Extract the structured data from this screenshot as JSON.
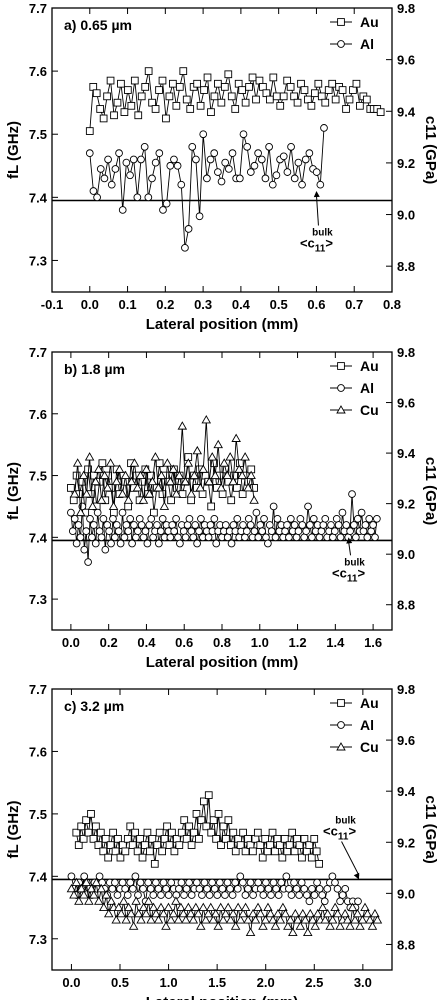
{
  "chart_data": [
    {
      "type": "line",
      "panel_label": "a) 0.65 µm",
      "xlabel": "Lateral position  (mm)",
      "ylabel_left": "f_L  (GHz)",
      "ylabel_right": "c_11  (GPa)",
      "xlim": [
        -0.1,
        0.8
      ],
      "ylim_left": [
        7.25,
        7.7
      ],
      "ylim_right": [
        8.7,
        9.8
      ],
      "xticks": [
        "-0.1",
        "0.0",
        "0.1",
        "0.2",
        "0.3",
        "0.4",
        "0.5",
        "0.6",
        "0.7",
        "0.8"
      ],
      "xtick_values": [
        -0.1,
        0.0,
        0.1,
        0.2,
        0.3,
        0.4,
        0.5,
        0.6,
        0.7,
        0.8
      ],
      "yticks_left": [
        "7.3",
        "7.4",
        "7.5",
        "7.6",
        "7.7"
      ],
      "ytick_left_values": [
        7.3,
        7.4,
        7.5,
        7.6,
        7.7
      ],
      "yticks_right": [
        "8.8",
        "9.0",
        "9.2",
        "9.4",
        "9.6",
        "9.8"
      ],
      "ytick_right_values": [
        8.8,
        9.0,
        9.2,
        9.4,
        9.6,
        9.8
      ],
      "hline": 7.395,
      "annotation": {
        "text": "<c11 bulk>",
        "tip": [
          0.6,
          7.41
        ],
        "label_at": [
          0.6,
          7.33
        ]
      },
      "legend": "top-right",
      "series": [
        {
          "name": "Au",
          "marker": "square",
          "x_start": 0.0,
          "x_end": 0.77,
          "values": [
            7.505,
            7.575,
            7.565,
            7.54,
            7.525,
            7.56,
            7.585,
            7.53,
            7.55,
            7.58,
            7.535,
            7.57,
            7.545,
            7.585,
            7.53,
            7.56,
            7.575,
            7.6,
            7.55,
            7.54,
            7.57,
            7.585,
            7.525,
            7.56,
            7.58,
            7.545,
            7.575,
            7.6,
            7.555,
            7.54,
            7.575,
            7.58,
            7.545,
            7.57,
            7.59,
            7.535,
            7.56,
            7.58,
            7.55,
            7.575,
            7.595,
            7.56,
            7.54,
            7.58,
            7.57,
            7.55,
            7.575,
            7.59,
            7.555,
            7.585,
            7.575,
            7.565,
            7.555,
            7.59,
            7.56,
            7.545,
            7.56,
            7.585,
            7.575,
            7.56,
            7.55,
            7.58,
            7.57,
            7.555,
            7.545,
            7.565,
            7.58,
            7.56,
            7.55,
            7.57,
            7.58,
            7.555,
            7.575,
            7.57,
            7.54,
            7.555,
            7.57,
            7.58,
            7.545,
            7.56,
            7.555,
            7.54,
            7.54,
            7.54,
            7.535
          ]
        },
        {
          "name": "Al",
          "marker": "circle",
          "x_start": 0.0,
          "x_end": 0.62,
          "values": [
            7.47,
            7.41,
            7.4,
            7.445,
            7.43,
            7.46,
            7.42,
            7.445,
            7.47,
            7.38,
            7.455,
            7.435,
            7.46,
            7.4,
            7.46,
            7.48,
            7.4,
            7.43,
            7.455,
            7.47,
            7.38,
            7.39,
            7.45,
            7.46,
            7.45,
            7.42,
            7.32,
            7.35,
            7.48,
            7.46,
            7.37,
            7.5,
            7.43,
            7.46,
            7.47,
            7.44,
            7.425,
            7.455,
            7.445,
            7.47,
            7.43,
            7.43,
            7.5,
            7.48,
            7.44,
            7.45,
            7.47,
            7.46,
            7.43,
            7.48,
            7.42,
            7.435,
            7.46,
            7.465,
            7.44,
            7.48,
            7.43,
            7.455,
            7.42,
            7.46,
            7.47,
            7.445,
            7.44,
            7.42,
            7.51
          ]
        }
      ]
    },
    {
      "type": "line",
      "panel_label": "b) 1.8 µm",
      "xlabel": "Lateral position  (mm)",
      "ylabel_left": "f_L  (GHz)",
      "ylabel_right": "c_11  (GPa)",
      "xlim": [
        -0.1,
        1.7
      ],
      "ylim_left": [
        7.25,
        7.7
      ],
      "ylim_right": [
        8.7,
        9.8
      ],
      "xticks": [
        "0.0",
        "0.2",
        "0.4",
        "0.6",
        "0.8",
        "1.0",
        "1.2",
        "1.4",
        "1.6"
      ],
      "xtick_values": [
        0.0,
        0.2,
        0.4,
        0.6,
        0.8,
        1.0,
        1.2,
        1.4,
        1.6
      ],
      "yticks_left": [
        "7.3",
        "7.4",
        "7.5",
        "7.6",
        "7.7"
      ],
      "ytick_left_values": [
        7.3,
        7.4,
        7.5,
        7.6,
        7.7
      ],
      "yticks_right": [
        "8.8",
        "9.0",
        "9.2",
        "9.4",
        "9.6",
        "9.8"
      ],
      "ytick_right_values": [
        8.8,
        9.0,
        9.2,
        9.4,
        9.6,
        9.8
      ],
      "hline": 7.395,
      "annotation": {
        "text": "<c11 bulk>",
        "tip": [
          1.47,
          7.4
        ],
        "label_at": [
          1.47,
          7.345
        ]
      },
      "legend": "top-right",
      "series": [
        {
          "name": "Au",
          "marker": "square",
          "x_start": 0.0,
          "x_end": 0.97,
          "values": [
            7.48,
            7.46,
            7.5,
            7.47,
            7.49,
            7.44,
            7.51,
            7.47,
            7.5,
            7.45,
            7.49,
            7.52,
            7.46,
            7.5,
            7.48,
            7.44,
            7.51,
            7.47,
            7.5,
            7.49,
            7.45,
            7.52,
            7.48,
            7.5,
            7.46,
            7.49,
            7.51,
            7.47,
            7.5,
            7.44,
            7.48,
            7.52,
            7.47,
            7.5,
            7.49,
            7.46,
            7.51,
            7.48,
            7.5,
            7.47,
            7.49,
            7.53,
            7.46,
            7.5,
            7.48,
            7.51,
            7.47,
            7.5,
            7.49,
            7.45,
            7.52,
            7.48,
            7.5,
            7.47,
            7.51,
            7.49,
            7.46,
            7.5,
            7.48,
            7.52,
            7.47,
            7.5,
            7.49,
            7.51,
            7.48
          ]
        },
        {
          "name": "Al",
          "marker": "circle",
          "x_start": 0.0,
          "x_end": 1.62,
          "values": [
            7.44,
            7.41,
            7.43,
            7.39,
            7.42,
            7.4,
            7.45,
            7.38,
            7.41,
            7.36,
            7.43,
            7.4,
            7.42,
            7.39,
            7.44,
            7.41,
            7.4,
            7.43,
            7.38,
            7.42,
            7.41,
            7.39,
            7.43,
            7.4,
            7.42,
            7.41,
            7.39,
            7.44,
            7.4,
            7.42,
            7.41,
            7.43,
            7.39,
            7.42,
            7.4,
            7.41,
            7.43,
            7.42,
            7.4,
            7.41,
            7.39,
            7.42,
            7.43,
            7.4,
            7.41,
            7.42,
            7.39,
            7.41,
            7.43,
            7.4,
            7.42,
            7.41,
            7.4,
            7.42,
            7.41,
            7.43,
            7.4,
            7.39,
            7.42,
            7.41,
            7.4,
            7.42,
            7.43,
            7.41,
            7.4,
            7.42,
            7.39,
            7.41,
            7.43,
            7.4,
            7.42,
            7.41,
            7.4,
            7.42,
            7.41,
            7.43,
            7.39,
            7.41,
            7.42,
            7.4,
            7.41,
            7.42,
            7.4,
            7.41,
            7.39,
            7.42,
            7.41,
            7.43,
            7.4,
            7.41,
            7.42,
            7.4,
            7.41,
            7.43,
            7.42,
            7.4,
            7.41,
            7.44,
            7.4,
            7.42,
            7.41,
            7.43,
            7.4,
            7.39,
            7.42,
            7.41,
            7.45,
            7.4,
            7.43,
            7.41,
            7.42,
            7.4,
            7.41,
            7.42,
            7.4,
            7.43,
            7.41,
            7.42,
            7.4,
            7.41,
            7.43,
            7.42,
            7.4,
            7.41,
            7.45,
            7.42,
            7.4,
            7.43,
            7.41,
            7.42,
            7.4,
            7.41,
            7.42,
            7.43,
            7.4,
            7.41,
            7.42,
            7.4,
            7.41,
            7.43,
            7.42,
            7.4,
            7.44,
            7.41,
            7.42,
            7.4,
            7.41,
            7.47,
            7.42,
            7.4,
            7.43,
            7.41,
            7.44,
            7.41,
            7.42,
            7.4,
            7.43,
            7.41,
            7.42,
            7.4,
            7.43
          ]
        },
        {
          "name": "Cu",
          "marker": "triangle",
          "x_start": 0.02,
          "x_end": 0.97,
          "values": [
            7.47,
            7.52,
            7.44,
            7.5,
            7.47,
            7.53,
            7.45,
            7.49,
            7.51,
            7.46,
            7.5,
            7.48,
            7.52,
            7.45,
            7.49,
            7.51,
            7.47,
            7.5,
            7.46,
            7.49,
            7.52,
            7.48,
            7.5,
            7.46,
            7.51,
            7.47,
            7.49,
            7.53,
            7.48,
            7.5,
            7.45,
            7.52,
            7.49,
            7.51,
            7.47,
            7.5,
            7.58,
            7.49,
            7.52,
            7.47,
            7.5,
            7.54,
            7.48,
            7.51,
            7.59,
            7.49,
            7.53,
            7.5,
            7.55,
            7.48,
            7.52,
            7.5,
            7.53,
            7.49,
            7.56,
            7.51,
            7.5,
            7.53,
            7.48,
            7.5,
            7.46
          ]
        }
      ]
    },
    {
      "type": "line",
      "panel_label": "c) 3.2 µm",
      "xlabel": "Lateral position  (mm)",
      "ylabel_left": "f_L  (GHz)",
      "ylabel_right": "c_11  (GPa)",
      "xlim": [
        -0.2,
        3.3
      ],
      "ylim_left": [
        7.25,
        7.7
      ],
      "ylim_right": [
        8.7,
        9.8
      ],
      "xticks": [
        "0.0",
        "0.5",
        "1.0",
        "1.5",
        "2.0",
        "2.5",
        "3.0"
      ],
      "xtick_values": [
        0.0,
        0.5,
        1.0,
        1.5,
        2.0,
        2.5,
        3.0
      ],
      "yticks_left": [
        "7.3",
        "7.4",
        "7.5",
        "7.6",
        "7.7"
      ],
      "ytick_left_values": [
        7.3,
        7.4,
        7.5,
        7.6,
        7.7
      ],
      "yticks_right": [
        "8.8",
        "9.0",
        "9.2",
        "9.4",
        "9.6",
        "9.8"
      ],
      "ytick_right_values": [
        8.8,
        9.0,
        9.2,
        9.4,
        9.6,
        9.8
      ],
      "hline": 7.395,
      "annotation": {
        "text": "<c11 bulk>",
        "tip": [
          2.96,
          7.395
        ],
        "label_at": [
          2.76,
          7.475
        ]
      },
      "legend": "top-right",
      "series": [
        {
          "name": "Au",
          "marker": "square",
          "x_start": 0.05,
          "x_end": 2.55,
          "values": [
            7.47,
            7.45,
            7.48,
            7.46,
            7.49,
            7.47,
            7.5,
            7.46,
            7.48,
            7.45,
            7.47,
            7.44,
            7.46,
            7.43,
            7.45,
            7.47,
            7.44,
            7.46,
            7.43,
            7.45,
            7.44,
            7.46,
            7.48,
            7.45,
            7.47,
            7.44,
            7.46,
            7.43,
            7.45,
            7.47,
            7.44,
            7.46,
            7.42,
            7.45,
            7.47,
            7.44,
            7.46,
            7.48,
            7.45,
            7.47,
            7.44,
            7.46,
            7.45,
            7.47,
            7.49,
            7.46,
            7.48,
            7.45,
            7.47,
            7.5,
            7.46,
            7.49,
            7.52,
            7.48,
            7.53,
            7.47,
            7.49,
            7.46,
            7.5,
            7.45,
            7.48,
            7.46,
            7.49,
            7.45,
            7.47,
            7.44,
            7.46,
            7.45,
            7.47,
            7.44,
            7.46,
            7.45,
            7.44,
            7.46,
            7.47,
            7.45,
            7.43,
            7.46,
            7.44,
            7.45,
            7.47,
            7.44,
            7.46,
            7.45,
            7.43,
            7.46,
            7.44,
            7.45,
            7.47,
            7.44,
            7.46,
            7.45,
            7.43,
            7.46,
            7.44,
            7.45,
            7.43,
            7.46,
            7.44,
            7.42
          ]
        },
        {
          "name": "Al",
          "marker": "circle",
          "x_start": 0.0,
          "x_end": 2.95,
          "values": [
            7.4,
            7.38,
            7.37,
            7.39,
            7.38,
            7.4,
            7.39,
            7.38,
            7.37,
            7.39,
            7.38,
            7.4,
            7.39,
            7.38,
            7.37,
            7.39,
            7.38,
            7.39,
            7.37,
            7.38,
            7.39,
            7.38,
            7.37,
            7.39,
            7.38,
            7.4,
            7.37,
            7.39,
            7.38,
            7.36,
            7.39,
            7.38,
            7.37,
            7.39,
            7.38,
            7.37,
            7.39,
            7.38,
            7.37,
            7.39,
            7.38,
            7.37,
            7.38,
            7.39,
            7.37,
            7.38,
            7.39,
            7.37,
            7.38,
            7.39,
            7.38,
            7.37,
            7.39,
            7.38,
            7.37,
            7.39,
            7.38,
            7.37,
            7.39,
            7.38,
            7.37,
            7.39,
            7.38,
            7.37,
            7.39,
            7.38,
            7.4,
            7.39,
            7.37,
            7.38,
            7.39,
            7.37,
            7.38,
            7.39,
            7.38,
            7.37,
            7.39,
            7.38,
            7.37,
            7.39,
            7.38,
            7.37,
            7.39,
            7.38,
            7.4,
            7.38,
            7.37,
            7.39,
            7.38,
            7.37,
            7.39,
            7.38,
            7.37,
            7.36,
            7.38,
            7.37,
            7.39,
            7.38,
            7.37,
            7.36,
            7.38,
            7.39,
            7.4,
            7.39,
            7.38,
            7.36,
            7.37,
            7.38,
            7.36,
            7.35,
            7.36,
            7.35,
            7.36
          ]
        },
        {
          "name": "Cu",
          "marker": "triangle",
          "x_start": 0.0,
          "x_end": 3.15,
          "values": [
            7.38,
            7.37,
            7.39,
            7.36,
            7.38,
            7.37,
            7.39,
            7.36,
            7.38,
            7.37,
            7.39,
            7.36,
            7.38,
            7.35,
            7.37,
            7.34,
            7.36,
            7.35,
            7.33,
            7.35,
            7.34,
            7.36,
            7.33,
            7.35,
            7.34,
            7.32,
            7.36,
            7.34,
            7.33,
            7.35,
            7.34,
            7.36,
            7.33,
            7.35,
            7.34,
            7.33,
            7.35,
            7.34,
            7.32,
            7.35,
            7.33,
            7.34,
            7.36,
            7.33,
            7.35,
            7.34,
            7.33,
            7.35,
            7.34,
            7.33,
            7.35,
            7.34,
            7.32,
            7.35,
            7.33,
            7.34,
            7.35,
            7.33,
            7.34,
            7.32,
            7.35,
            7.33,
            7.34,
            7.35,
            7.33,
            7.34,
            7.32,
            7.35,
            7.33,
            7.34,
            7.35,
            7.33,
            7.31,
            7.34,
            7.33,
            7.35,
            7.34,
            7.32,
            7.33,
            7.35,
            7.34,
            7.33,
            7.32,
            7.34,
            7.33,
            7.35,
            7.34,
            7.32,
            7.33,
            7.31,
            7.34,
            7.33,
            7.32,
            7.34,
            7.33,
            7.31,
            7.34,
            7.33,
            7.32,
            7.34,
            7.33,
            7.35,
            7.33,
            7.34,
            7.32,
            7.33,
            7.35,
            7.34,
            7.32,
            7.33,
            7.34,
            7.33,
            7.32,
            7.35,
            7.33,
            7.34,
            7.32,
            7.33,
            7.35,
            7.34,
            7.33,
            7.32,
            7.34,
            7.33
          ]
        }
      ]
    }
  ]
}
